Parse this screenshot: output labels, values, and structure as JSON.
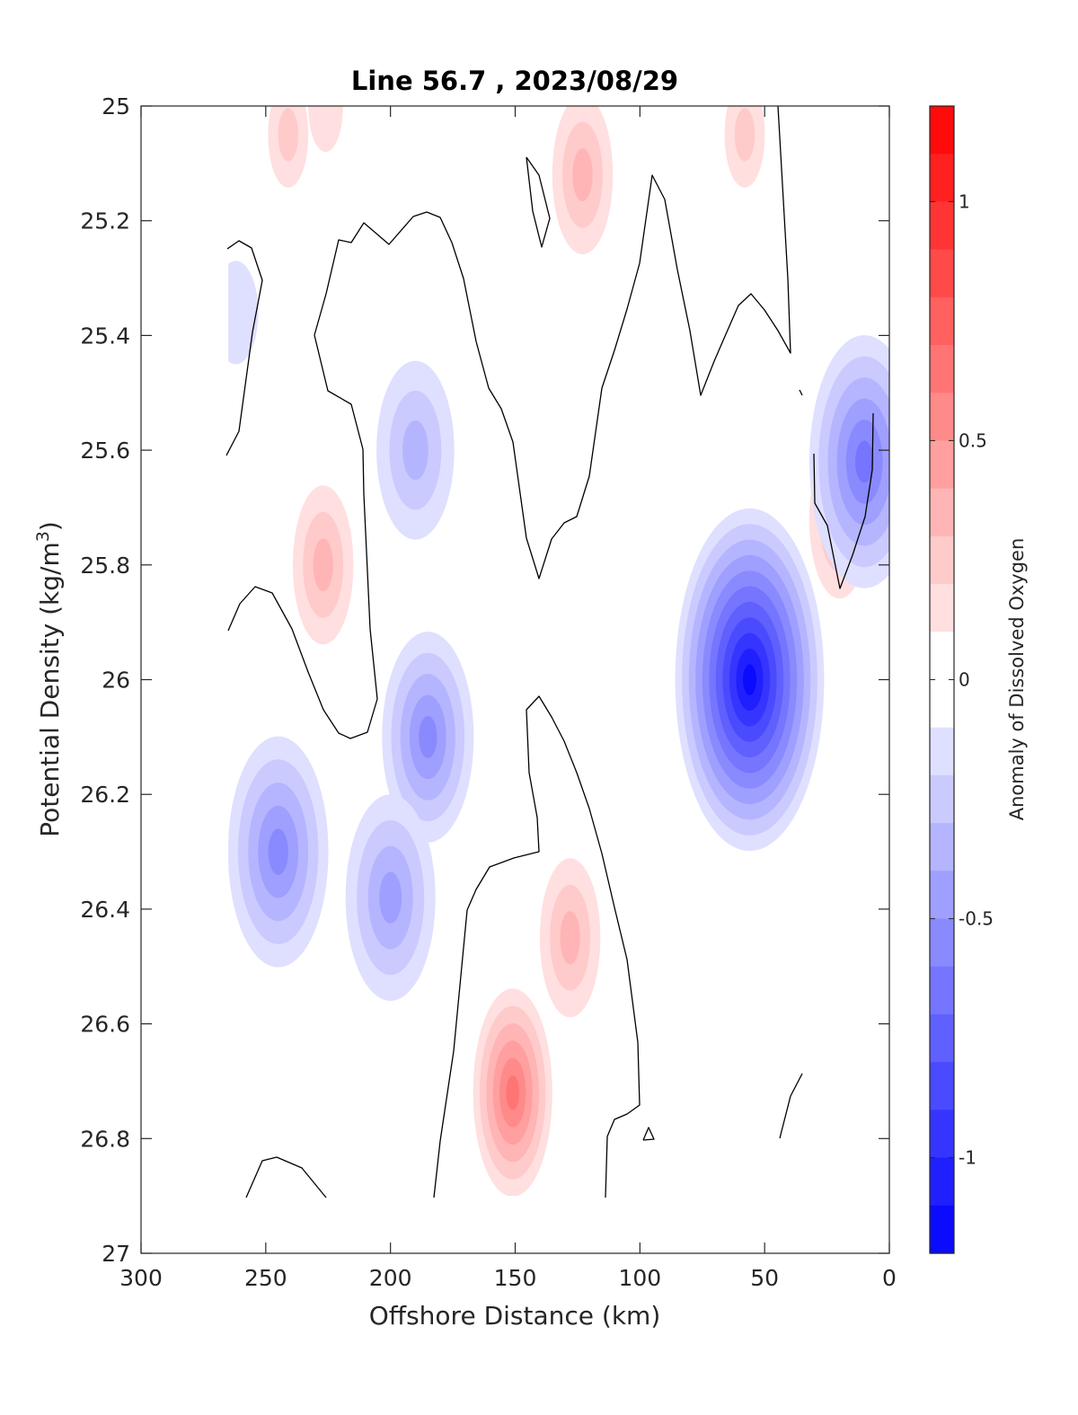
{
  "chart_data": {
    "type": "heatmap",
    "subtype": "filled-contour section",
    "title": "Line 56.7 , 2023/08/29",
    "xlabel": "Offshore Distance (km)",
    "ylabel_main": "Potential Density (kg/m",
    "ylabel_sup": "3",
    "ylabel_close": ")",
    "colorbar_label": "Anomaly of Dissolved Oxygen",
    "xlim": [
      300,
      0
    ],
    "x_reversed": true,
    "ylim": [
      25,
      27
    ],
    "y_reversed": true,
    "x_ticks": [
      300,
      250,
      200,
      150,
      100,
      50,
      0
    ],
    "x_tick_labels": [
      "300",
      "250",
      "200",
      "150",
      "100",
      "50",
      "0"
    ],
    "y_ticks": [
      25,
      25.2,
      25.4,
      25.6,
      25.8,
      26,
      26.2,
      26.4,
      26.6,
      26.8,
      27
    ],
    "y_tick_labels": [
      "25",
      "25.2",
      "25.4",
      "25.6",
      "25.8",
      "26",
      "26.2",
      "26.4",
      "26.6",
      "26.8",
      "27"
    ],
    "colorbar_range": [
      -1.2,
      1.2
    ],
    "colorbar_levels": 24,
    "colorbar_ticks": [
      1,
      0.5,
      0,
      -0.5,
      -1
    ],
    "colorbar_tick_labels": [
      "1",
      "0.5",
      "0",
      "-0.5",
      "-1"
    ],
    "colormap": {
      "negative": "#0000ff",
      "zero": "#ffffff",
      "positive": "#ff0000"
    },
    "data_extent": {
      "x": [
        265,
        0
      ],
      "y": [
        25,
        26.9
      ]
    },
    "features": [
      {
        "kind": "positive",
        "x": 241,
        "y": 25.05,
        "value": 0.25
      },
      {
        "kind": "positive",
        "x": 226,
        "y": 25.0,
        "value": 0.1
      },
      {
        "kind": "positive",
        "x": 123,
        "y": 25.12,
        "value": 0.35
      },
      {
        "kind": "positive",
        "x": 58,
        "y": 25.05,
        "value": 0.25
      },
      {
        "kind": "positive",
        "x": 227,
        "y": 25.8,
        "value": 0.35
      },
      {
        "kind": "positive",
        "x": 151,
        "y": 26.72,
        "value": 0.65
      },
      {
        "kind": "positive",
        "x": 128,
        "y": 26.45,
        "value": 0.35
      },
      {
        "kind": "positive",
        "x": 20,
        "y": 25.72,
        "value": 0.3
      },
      {
        "kind": "negative",
        "x": 56,
        "y": 26.0,
        "value": -1.15
      },
      {
        "kind": "negative",
        "x": 245,
        "y": 26.3,
        "value": -0.5
      },
      {
        "kind": "negative",
        "x": 185,
        "y": 26.1,
        "value": -0.55
      },
      {
        "kind": "negative",
        "x": 200,
        "y": 26.38,
        "value": -0.4
      },
      {
        "kind": "negative",
        "x": 190,
        "y": 25.6,
        "value": -0.3
      },
      {
        "kind": "negative",
        "x": 10,
        "y": 25.62,
        "value": -0.6
      },
      {
        "kind": "negative",
        "x": 262,
        "y": 25.36,
        "value": -0.1
      }
    ]
  }
}
